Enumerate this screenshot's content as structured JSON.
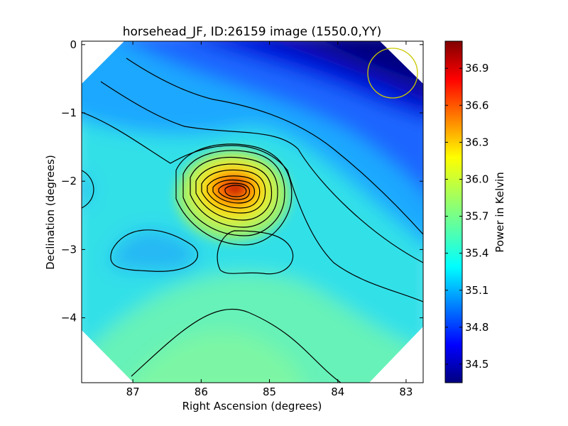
{
  "chart_data": {
    "type": "heatmap",
    "title": "horsehead_JF, ID:26159 image (1550.0,YY)",
    "xlabel": "Right Ascension (degrees)",
    "ylabel": "Declination (degrees)",
    "colorbar_label": "Power in Kelvin",
    "xlim": [
      87.75,
      82.75
    ],
    "ylim": [
      -4.95,
      0.05
    ],
    "x_ticks": [
      87,
      86,
      85,
      84,
      83
    ],
    "x_tick_labels": [
      "87",
      "86",
      "85",
      "84",
      "83"
    ],
    "y_ticks": [
      0,
      -1,
      -2,
      -3,
      -4
    ],
    "y_tick_labels": [
      "0",
      "−1",
      "−2",
      "−3",
      "−4"
    ],
    "colorbar_range": [
      34.35,
      37.12
    ],
    "colorbar_ticks": [
      34.5,
      34.8,
      35.1,
      35.4,
      35.7,
      36.0,
      36.3,
      36.6,
      36.9
    ],
    "colorbar_tick_labels": [
      "34.5",
      "34.8",
      "35.1",
      "35.4",
      "35.7",
      "36.0",
      "36.3",
      "36.6",
      "36.9"
    ],
    "colormap": "jet",
    "peak": {
      "ra": 85.5,
      "dec": -2.1,
      "value": 37.1
    },
    "beam_marker": {
      "ra": 83.2,
      "dec": -0.4,
      "color": "#c8c800"
    },
    "grid": false
  }
}
